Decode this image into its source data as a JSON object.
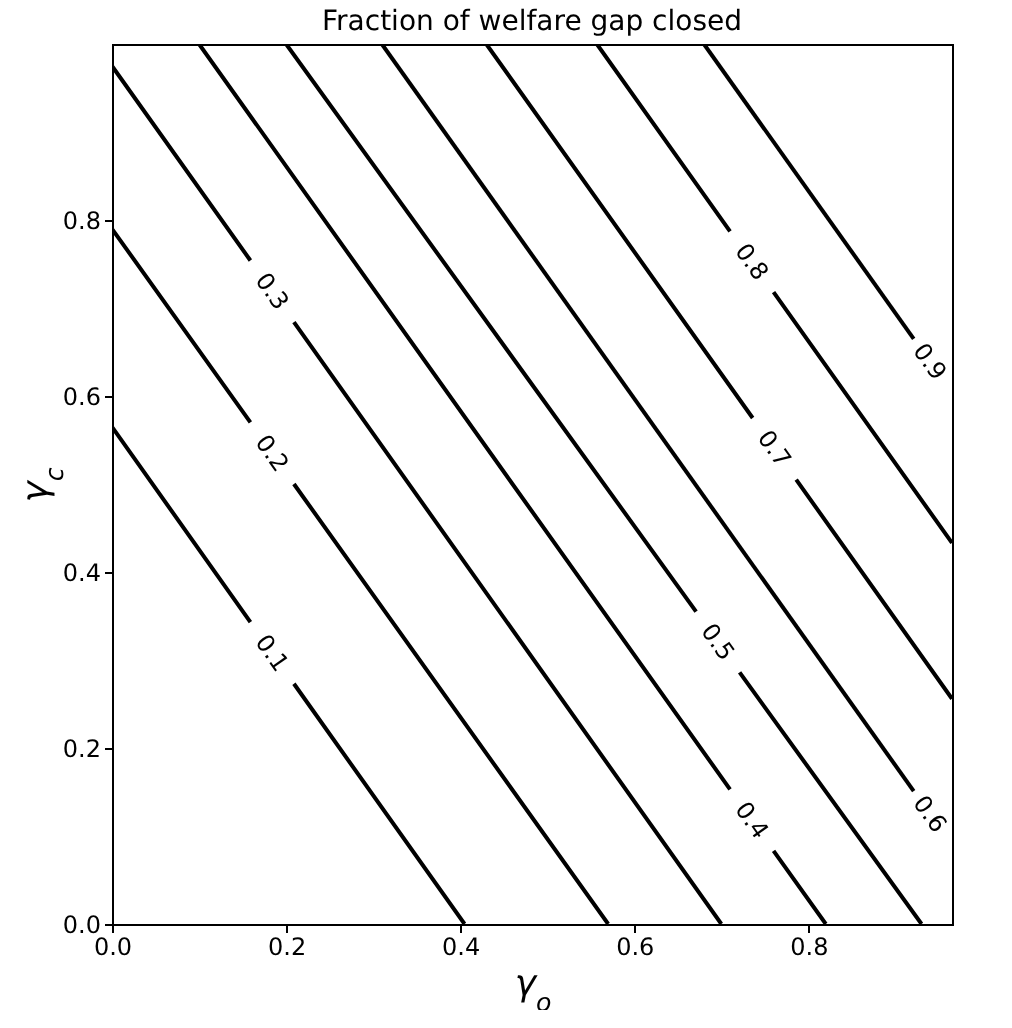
{
  "chart_data": {
    "type": "line",
    "title": "Fraction of welfare gap closed",
    "xlabel": "γ$_{o}$",
    "ylabel": "γ$_{c}$",
    "xlim": [
      0,
      0.965
    ],
    "ylim": [
      0,
      1
    ],
    "xticks": [
      {
        "value": 0,
        "label": "0.0"
      },
      0.2,
      0.4,
      0.6,
      0.8
    ],
    "yticks": [
      {
        "value": 0,
        "label": "0.0"
      },
      0.2,
      0.4,
      0.6,
      0.8
    ],
    "grid": false,
    "legend": false,
    "series": [
      {
        "name": "0.1",
        "color": "#000000",
        "x": [
          0,
          0.159,
          0.184,
          0.209,
          0.405
        ],
        "values": [
          0.565,
          0.343,
          null,
          0.273,
          0
        ]
      },
      {
        "name": "0.2",
        "color": "#000000",
        "x": [
          0,
          0.159,
          0.184,
          0.209,
          0.57
        ],
        "values": [
          0.79,
          0.57,
          null,
          0.5,
          0
        ]
      },
      {
        "name": "0.3",
        "color": "#000000",
        "x": [
          0,
          0.159,
          0.184,
          0.209,
          0.7
        ],
        "values": [
          0.975,
          0.754,
          null,
          0.684,
          0
        ]
      },
      {
        "name": "0.4",
        "color": "#000000",
        "x": [
          0.1,
          0.71,
          0.735,
          0.76,
          0.82
        ],
        "values": [
          1,
          0.153,
          null,
          0.083,
          0
        ]
      },
      {
        "name": "0.5",
        "color": "#000000",
        "x": [
          0.2,
          0.671,
          0.696,
          0.721,
          0.93
        ],
        "values": [
          1,
          0.355,
          null,
          0.286,
          0
        ]
      },
      {
        "name": "0.6",
        "color": "#000000",
        "x": [
          0.31,
          0.921
        ],
        "values": [
          1,
          0.151
        ]
      },
      {
        "name": "0.7",
        "color": "#000000",
        "x": [
          0.43,
          0.736,
          0.761,
          0.786,
          0.965
        ],
        "values": [
          1,
          0.575,
          null,
          0.505,
          0.256
        ]
      },
      {
        "name": "0.8",
        "color": "#000000",
        "x": [
          0.557,
          0.71,
          0.735,
          0.76,
          0.965
        ],
        "values": [
          1,
          0.787,
          null,
          0.718,
          0.433
        ]
      },
      {
        "name": "0.9",
        "color": "#000000",
        "x": [
          0.68,
          0.921
        ],
        "values": [
          1,
          0.665
        ]
      }
    ]
  }
}
